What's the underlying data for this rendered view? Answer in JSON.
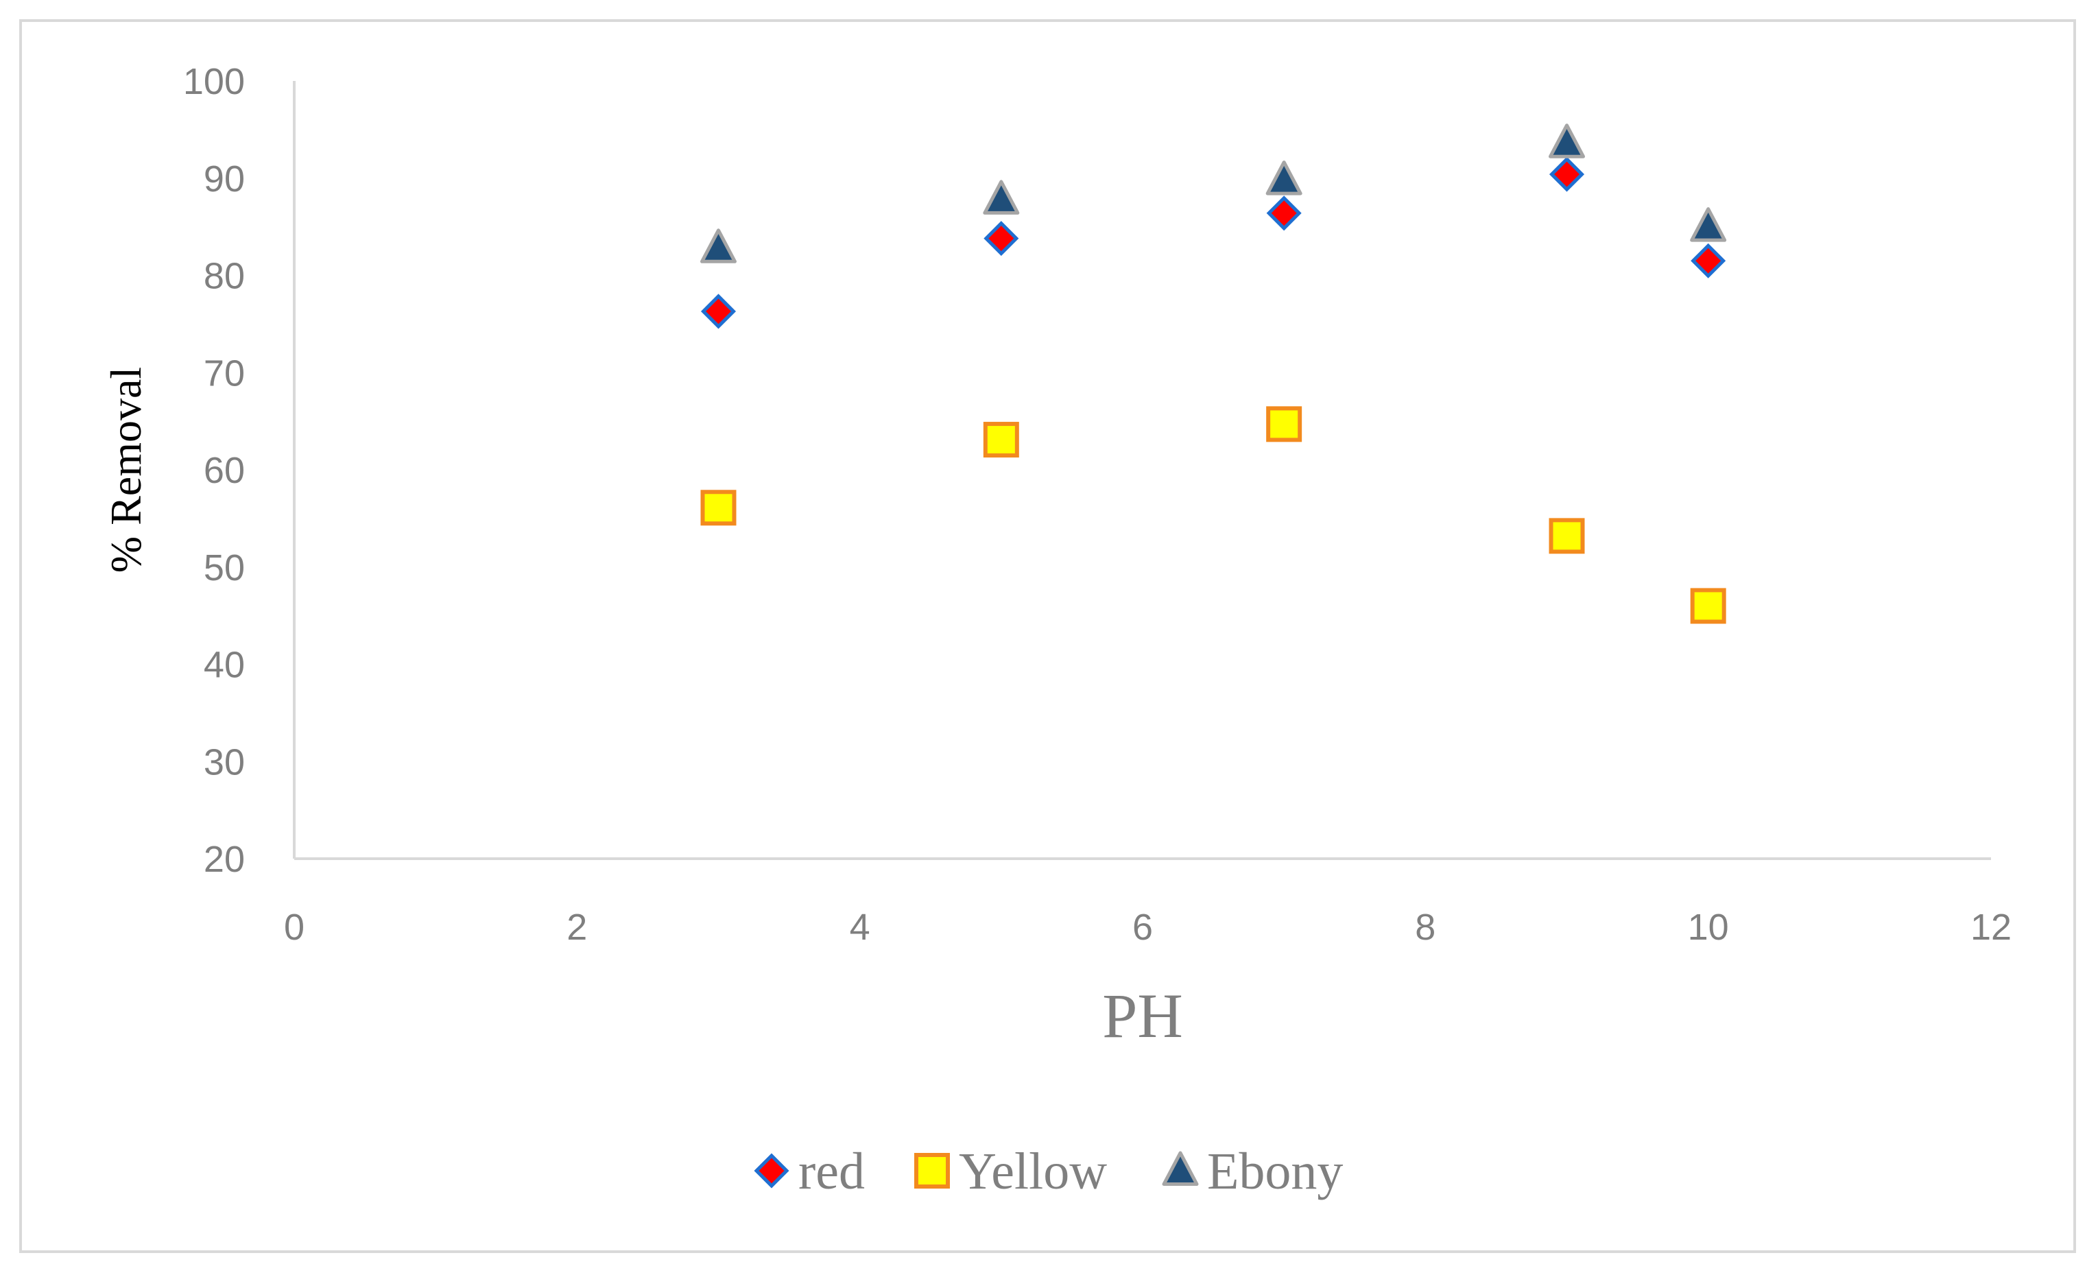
{
  "chart_data": {
    "type": "scatter",
    "title": "",
    "xlabel": "PH",
    "ylabel": "% Removal",
    "xlim": [
      0,
      12
    ],
    "ylim": [
      20,
      100
    ],
    "x_ticks": [
      0,
      2,
      4,
      6,
      8,
      10,
      12
    ],
    "y_ticks": [
      20,
      30,
      40,
      50,
      60,
      70,
      80,
      90,
      100
    ],
    "grid": false,
    "legend_position": "bottom",
    "series": [
      {
        "name": "red",
        "marker": "diamond",
        "fill": "#ff0000",
        "stroke": "#1f6fd1",
        "points": [
          [
            3,
            76.3
          ],
          [
            5,
            83.8
          ],
          [
            7,
            86.4
          ],
          [
            9,
            90.4
          ],
          [
            10,
            81.5
          ]
        ]
      },
      {
        "name": "Yellow",
        "marker": "square",
        "fill": "#ffff00",
        "stroke": "#f28a1e",
        "points": [
          [
            3,
            56.1
          ],
          [
            5,
            63.1
          ],
          [
            7,
            64.7
          ],
          [
            9,
            53.2
          ],
          [
            10,
            46.0
          ]
        ]
      },
      {
        "name": "Ebony",
        "marker": "triangle",
        "fill": "#1f4e79",
        "stroke": "#a5a5a5",
        "points": [
          [
            3,
            82.8
          ],
          [
            5,
            87.8
          ],
          [
            7,
            89.8
          ],
          [
            9,
            93.6
          ],
          [
            10,
            85.0
          ]
        ]
      }
    ]
  }
}
